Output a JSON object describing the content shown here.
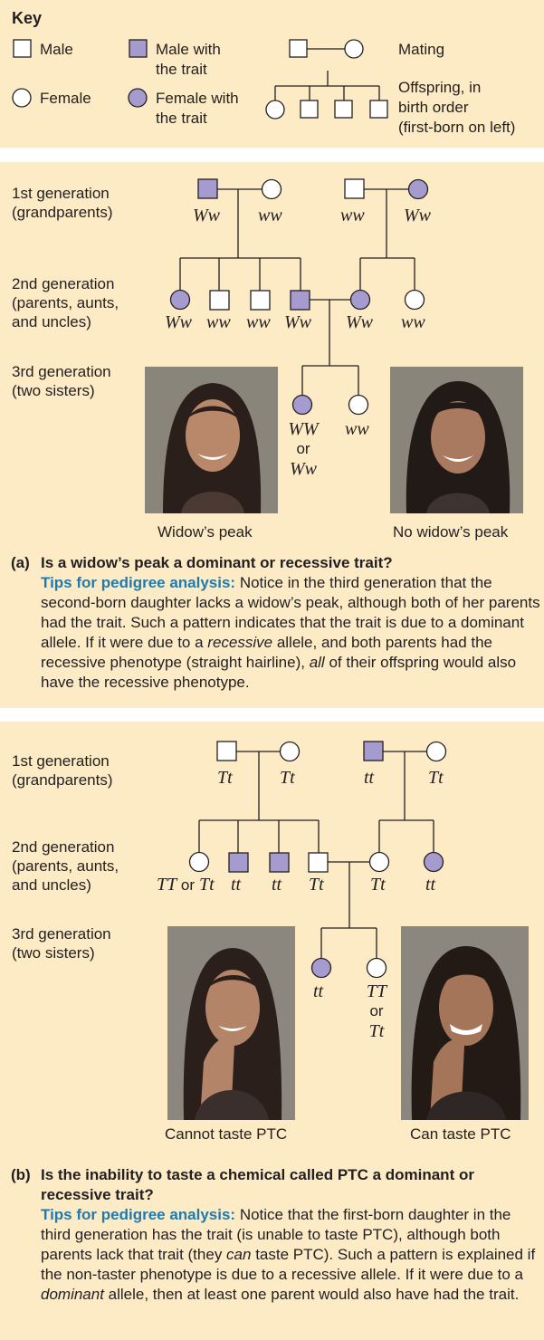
{
  "key": {
    "title": "Key",
    "male": "Male",
    "male_trait": [
      "Male with",
      "the trait"
    ],
    "mating": "Mating",
    "female": "Female",
    "female_trait": [
      "Female with",
      "the trait"
    ],
    "offspring": [
      "Offspring, in",
      "birth order",
      "(first-born on left)"
    ]
  },
  "colors": {
    "panel": "#fdebc6",
    "trait_fill": "#a59bcf",
    "tips": "#1f7ab0",
    "line": "#231f20"
  },
  "panel_a": {
    "gen1": [
      "1st generation",
      "(grandparents)"
    ],
    "gen2": [
      "2nd generation",
      "(parents, aunts,",
      "and uncles)"
    ],
    "gen3": [
      "3rd generation",
      "(two sisters)"
    ],
    "g1": [
      "Ww",
      "ww",
      "ww",
      "Ww"
    ],
    "g2": [
      "Ww",
      "ww",
      "ww",
      "Ww",
      "Ww",
      "ww"
    ],
    "g3_left": [
      "WW",
      "or",
      "Ww"
    ],
    "g3_right": "ww",
    "caption_left": "Widow’s peak",
    "caption_right": "No widow’s peak",
    "q_label": "(a)",
    "q_title": "Is a widow’s peak a dominant or recessive trait?",
    "tips": "Tips for pedigree analysis:",
    "body_1": " Notice in the third generation that the second-born daughter lacks a widow’s peak, although both of her parents had the trait. Such a pattern indicates that the trait is due to a dominant allele. If it were due to a ",
    "body_em1": "recessive",
    "body_2": " allele, and both parents had the recessive phenotype (straight hairline), ",
    "body_em2": "all",
    "body_3": " of their offspring would also have the recessive phenotype."
  },
  "panel_b": {
    "gen1": [
      "1st generation",
      "(grandparents)"
    ],
    "gen2": [
      "2nd generation",
      "(parents, aunts,",
      "and uncles)"
    ],
    "gen3": [
      "3rd generation",
      "(two sisters)"
    ],
    "g1": [
      "Tt",
      "Tt",
      "tt",
      "Tt"
    ],
    "g2_first": [
      "TT",
      "or",
      "Tt"
    ],
    "g2": [
      "tt",
      "tt",
      "Tt",
      "Tt",
      "tt"
    ],
    "g3_left": "tt",
    "g3_right": [
      "TT",
      "or",
      "Tt"
    ],
    "caption_left": "Cannot taste PTC",
    "caption_right": "Can taste PTC",
    "q_label": "(b)",
    "q_title": "Is the inability to taste a chemical called PTC a dominant or recessive trait?",
    "tips": "Tips for pedigree analysis:",
    "body_1": " Notice that the first-born daughter in the third generation has the trait (is unable to taste PTC), although both parents lack that trait (they ",
    "body_em1": "can",
    "body_2": " taste PTC). Such a pattern is explained if the non-taster phenotype is due to a recessive allele. If it were due to a ",
    "body_em2": "dominant",
    "body_3": " allele, then at least one parent would also have had the trait."
  }
}
